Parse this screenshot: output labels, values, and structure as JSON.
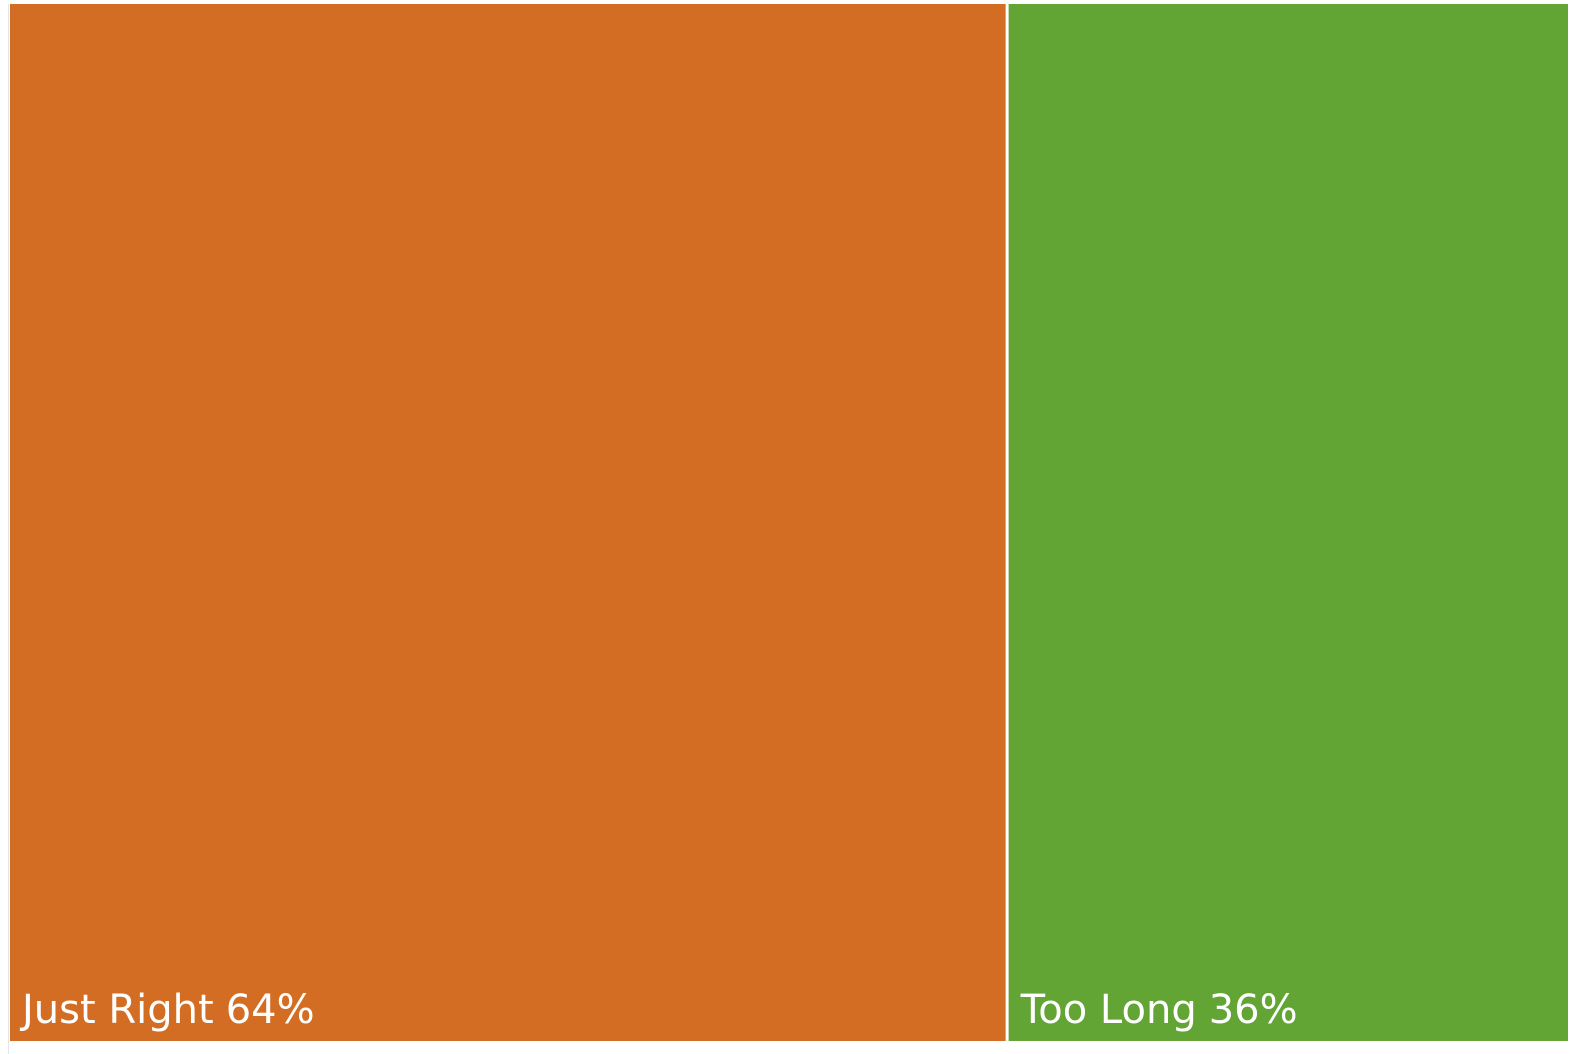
{
  "chart_data": {
    "type": "treemap",
    "categories": [
      "Just Right",
      "Too Long"
    ],
    "values": [
      64,
      36
    ],
    "value_labels": [
      "64%",
      "36%"
    ],
    "colors": [
      "#d36d23",
      "#62a534"
    ]
  }
}
